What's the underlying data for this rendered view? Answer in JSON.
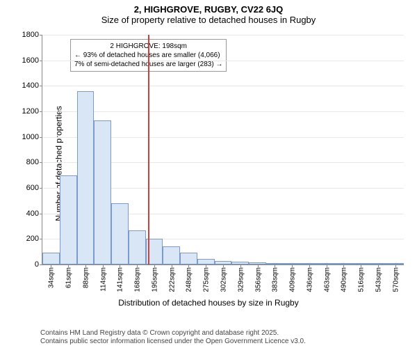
{
  "title": {
    "line1": "2, HIGHGROVE, RUGBY, CV22 6JQ",
    "line2": "Size of property relative to detached houses in Rugby"
  },
  "chart": {
    "type": "histogram",
    "background_color": "#ffffff",
    "grid_color": "#e8e8e8",
    "axis_color": "#888888",
    "bar_fill": "#d9e6f5",
    "bar_border": "#7a9acc",
    "marker_line_color": "#c94040",
    "ylabel": "Number of detached properties",
    "xlabel": "Distribution of detached houses by size in Rugby",
    "ymax": 1800,
    "ytick_step": 200,
    "xticks": [
      "34sqm",
      "61sqm",
      "88sqm",
      "114sqm",
      "141sqm",
      "168sqm",
      "195sqm",
      "222sqm",
      "248sqm",
      "275sqm",
      "302sqm",
      "329sqm",
      "356sqm",
      "383sqm",
      "409sqm",
      "436sqm",
      "463sqm",
      "490sqm",
      "516sqm",
      "543sqm",
      "570sqm"
    ],
    "values": [
      95,
      700,
      1360,
      1130,
      480,
      270,
      200,
      140,
      95,
      45,
      30,
      20,
      15,
      10,
      8,
      6,
      5,
      10,
      4,
      3,
      2
    ],
    "marker_bin_index": 6,
    "annotation": {
      "line1": "2 HIGHGROVE: 198sqm",
      "line2": "← 93% of detached houses are smaller (4,066)",
      "line3": "7% of semi-detached houses are larger (283) →"
    }
  },
  "attribution": {
    "line1": "Contains HM Land Registry data © Crown copyright and database right 2025.",
    "line2": "Contains public sector information licensed under the Open Government Licence v3.0."
  }
}
